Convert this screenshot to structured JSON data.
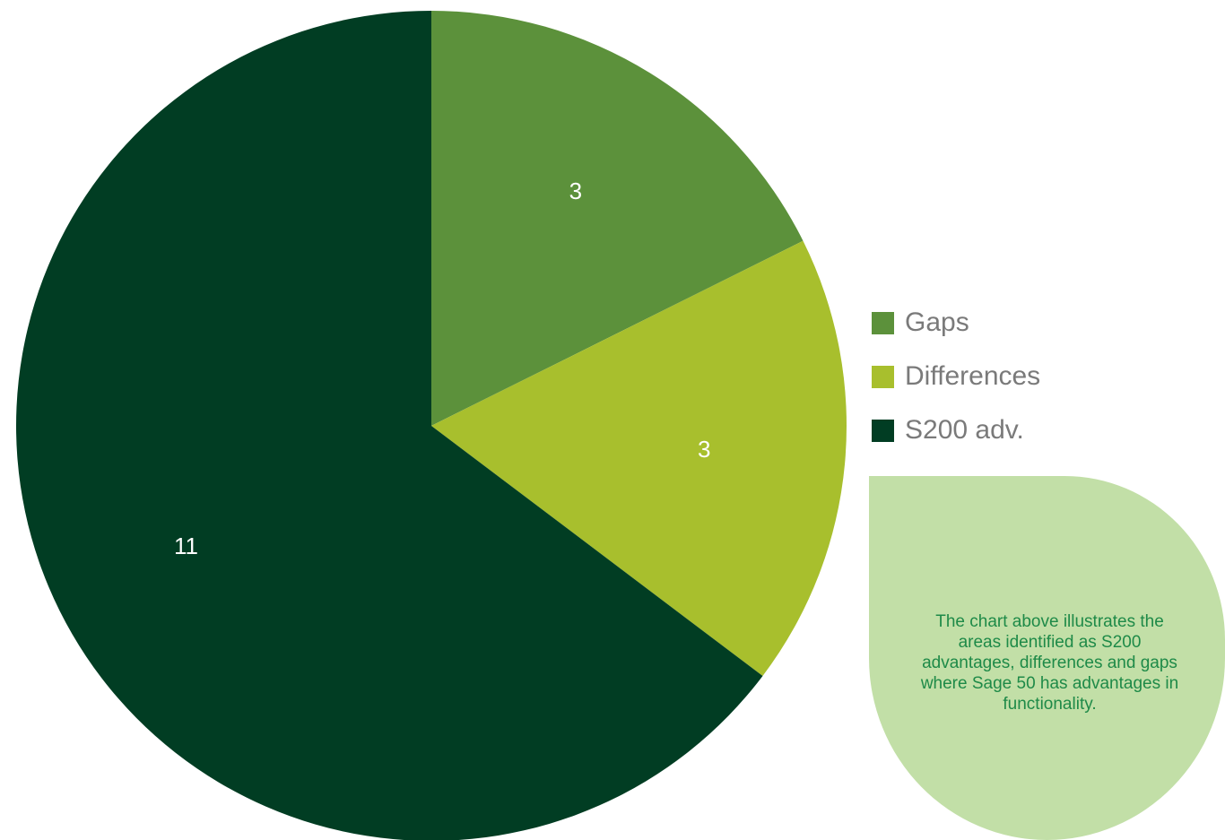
{
  "chart_data": {
    "type": "pie",
    "categories": [
      "Gaps",
      "Differences",
      "S200 adv."
    ],
    "values": [
      3,
      3,
      11
    ],
    "colors": [
      "#5c913b",
      "#a8bf2d",
      "#013d23"
    ],
    "data_labels": [
      "3",
      "3",
      "11"
    ],
    "start": "12 o'clock",
    "direction": "clockwise",
    "legend_position": "right"
  },
  "legend": {
    "items": [
      {
        "label": "Gaps",
        "color": "#5c913b"
      },
      {
        "label": "Differences",
        "color": "#a8bf2d"
      },
      {
        "label": "S200 adv.",
        "color": "#013d23"
      }
    ]
  },
  "note": {
    "text": "The chart above illustrates the areas identified as S200 advantages, differences and gaps where Sage 50 has advantages in functionality.",
    "background": "#c2dfa7",
    "text_color": "#1e8a48"
  }
}
